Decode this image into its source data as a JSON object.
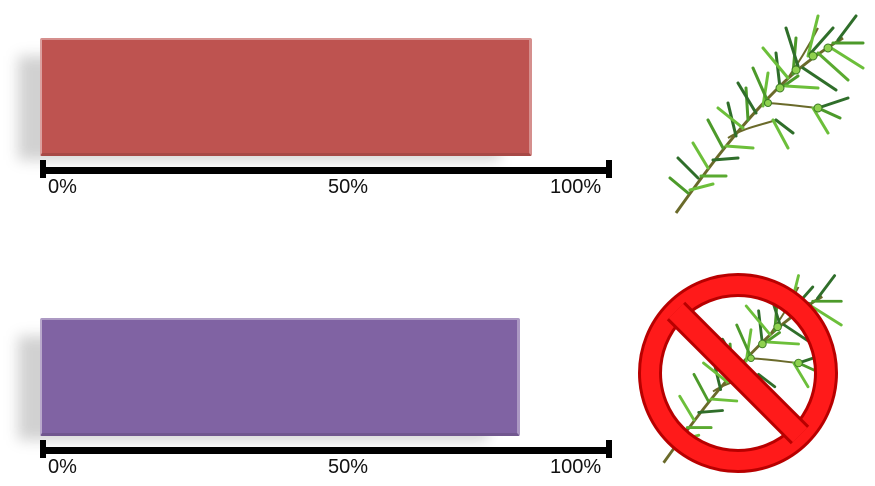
{
  "chart_data": [
    {
      "type": "bar",
      "orientation": "horizontal",
      "values": [
        0.86
      ],
      "xlim": [
        0,
        1
      ],
      "ticks": [
        "0%",
        "50%",
        "100%"
      ],
      "color": "#be5350",
      "icon": "herb-sprig-icon"
    },
    {
      "type": "bar",
      "orientation": "horizontal",
      "values": [
        0.84
      ],
      "xlim": [
        0,
        1
      ],
      "ticks": [
        "0%",
        "50%",
        "100%"
      ],
      "color": "#8063a3",
      "icon": "herb-sprig-prohibited-icon"
    }
  ]
}
